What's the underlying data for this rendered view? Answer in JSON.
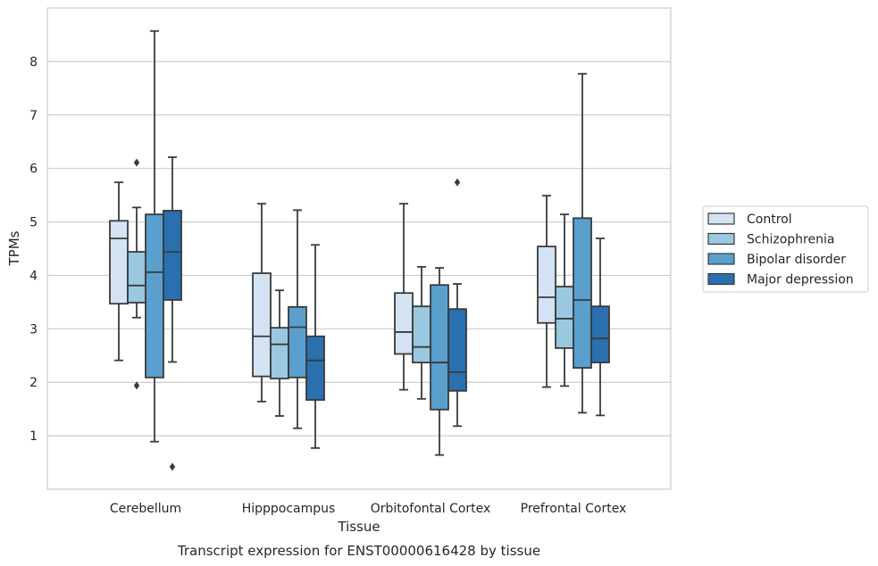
{
  "caption": "Transcript expression for ENST00000616428 by tissue",
  "chart_data": {
    "type": "box",
    "xlabel": "Tissue",
    "ylabel": "TPMs",
    "ylim": [
      0.0,
      9.0
    ],
    "yticks": [
      1,
      2,
      3,
      4,
      5,
      6,
      7,
      8
    ],
    "grid": "horizontal",
    "legend_position": "right",
    "categories": [
      "Cerebellum",
      "Hipppocampus",
      "Orbitofontal Cortex",
      "Prefrontal Cortex"
    ],
    "series": [
      {
        "name": "Control",
        "color": "#d3e3f3",
        "boxes": [
          {
            "whisker_low": 2.41,
            "q1": 3.47,
            "median": 4.69,
            "q3": 5.02,
            "whisker_high": 5.74,
            "outliers": []
          },
          {
            "whisker_low": 1.64,
            "q1": 2.11,
            "median": 2.86,
            "q3": 4.04,
            "whisker_high": 5.34,
            "outliers": []
          },
          {
            "whisker_low": 1.86,
            "q1": 2.53,
            "median": 2.94,
            "q3": 3.67,
            "whisker_high": 5.34,
            "outliers": []
          },
          {
            "whisker_low": 1.91,
            "q1": 3.11,
            "median": 3.59,
            "q3": 4.54,
            "whisker_high": 5.49,
            "outliers": []
          }
        ]
      },
      {
        "name": "Schizophrenia",
        "color": "#9ac8e0",
        "boxes": [
          {
            "whisker_low": 3.21,
            "q1": 3.49,
            "median": 3.81,
            "q3": 4.44,
            "whisker_high": 5.27,
            "outliers": [
              6.11,
              1.94
            ]
          },
          {
            "whisker_low": 1.37,
            "q1": 2.07,
            "median": 2.71,
            "q3": 3.02,
            "whisker_high": 3.72,
            "outliers": []
          },
          {
            "whisker_low": 1.69,
            "q1": 2.37,
            "median": 2.66,
            "q3": 3.42,
            "whisker_high": 4.16,
            "outliers": []
          },
          {
            "whisker_low": 1.93,
            "q1": 2.64,
            "median": 3.19,
            "q3": 3.79,
            "whisker_high": 5.14,
            "outliers": []
          }
        ]
      },
      {
        "name": "Bipolar disorder",
        "color": "#5a9fcd",
        "boxes": [
          {
            "whisker_low": 0.89,
            "q1": 2.09,
            "median": 4.06,
            "q3": 5.14,
            "whisker_high": 8.57,
            "outliers": []
          },
          {
            "whisker_low": 1.14,
            "q1": 2.09,
            "median": 3.03,
            "q3": 3.41,
            "whisker_high": 5.22,
            "outliers": []
          },
          {
            "whisker_low": 0.64,
            "q1": 1.49,
            "median": 2.37,
            "q3": 3.82,
            "whisker_high": 4.14,
            "outliers": []
          },
          {
            "whisker_low": 1.43,
            "q1": 2.27,
            "median": 3.54,
            "q3": 5.07,
            "whisker_high": 7.77,
            "outliers": []
          }
        ]
      },
      {
        "name": "Major depression",
        "color": "#2a6fae",
        "boxes": [
          {
            "whisker_low": 2.38,
            "q1": 3.54,
            "median": 4.44,
            "q3": 5.21,
            "whisker_high": 6.21,
            "outliers": [
              0.42
            ]
          },
          {
            "whisker_low": 0.77,
            "q1": 1.67,
            "median": 2.41,
            "q3": 2.86,
            "whisker_high": 4.57,
            "outliers": []
          },
          {
            "whisker_low": 1.18,
            "q1": 1.84,
            "median": 2.19,
            "q3": 3.37,
            "whisker_high": 3.84,
            "outliers": [
              5.74
            ]
          },
          {
            "whisker_low": 1.38,
            "q1": 2.37,
            "median": 2.82,
            "q3": 3.42,
            "whisker_high": 4.69,
            "outliers": []
          }
        ]
      }
    ]
  }
}
